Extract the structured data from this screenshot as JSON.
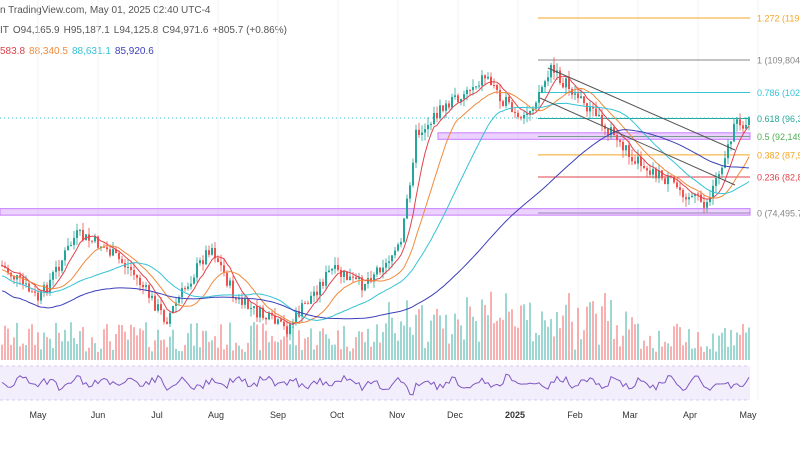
{
  "header": {
    "line1": "n TradingView.com, May 01, 2025 02:40 UTC-4",
    "ohlc": [
      {
        "text": "IT"
      },
      {
        "text": "O94,165.9"
      },
      {
        "text": "H95,187.1"
      },
      {
        "text": "L94,125.8"
      },
      {
        "text": "C94,971.6"
      },
      {
        "text": "+805.7 (+0.86%)"
      }
    ],
    "ma_values": [
      {
        "text": "583.8",
        "color": "#e0434b"
      },
      {
        "text": "88,340.5",
        "color": "#f08a3c"
      },
      {
        "text": "88,631.1",
        "color": "#35c3d6"
      },
      {
        "text": "85,920.6",
        "color": "#3b3fb8"
      }
    ]
  },
  "chart_data": {
    "type": "candlestick",
    "x_ticks": [
      "May",
      "Jun",
      "Jul",
      "Aug",
      "Sep",
      "Oct",
      "Nov",
      "Dec",
      "2025",
      "Feb",
      "Mar",
      "Apr",
      "May"
    ],
    "fib_levels": [
      {
        "ratio": "1.272",
        "label": "1.272 (119,",
        "value": 119500,
        "color": "#f5a623"
      },
      {
        "ratio": "1",
        "label": "1 (109,804.",
        "value": 109804,
        "color": "#888888"
      },
      {
        "ratio": "0.786",
        "label": "0.786 (102,",
        "value": 102300,
        "color": "#35c3d6"
      },
      {
        "ratio": "0.618",
        "label": "0.618 (96,3",
        "value": 96300,
        "color": "#26a69a"
      },
      {
        "ratio": "0.5",
        "label": "0.5 (92,149",
        "value": 92149,
        "color": "#4caf50"
      },
      {
        "ratio": "0.382",
        "label": "0.382 (87,9",
        "value": 87900,
        "color": "#f5a623"
      },
      {
        "ratio": "0.236",
        "label": "0.236 (82,8",
        "value": 82800,
        "color": "#e0434b"
      },
      {
        "ratio": "0",
        "label": "0 (74,495.7",
        "value": 74495,
        "color": "#888888"
      }
    ],
    "support_zones": [
      {
        "from_value": 91500,
        "to_value": 93000,
        "color": "#c77dff"
      },
      {
        "from_value": 74000,
        "to_value": 75500,
        "color": "#c77dff"
      }
    ],
    "colors": {
      "up": "#26a69a",
      "down": "#ef5350",
      "ma_fast": "#e0434b",
      "ma_mid": "#f08a3c",
      "ma_slow": "#35c3d6",
      "ma_long": "#3b3fb8",
      "rsi": "#7e57c2"
    }
  }
}
